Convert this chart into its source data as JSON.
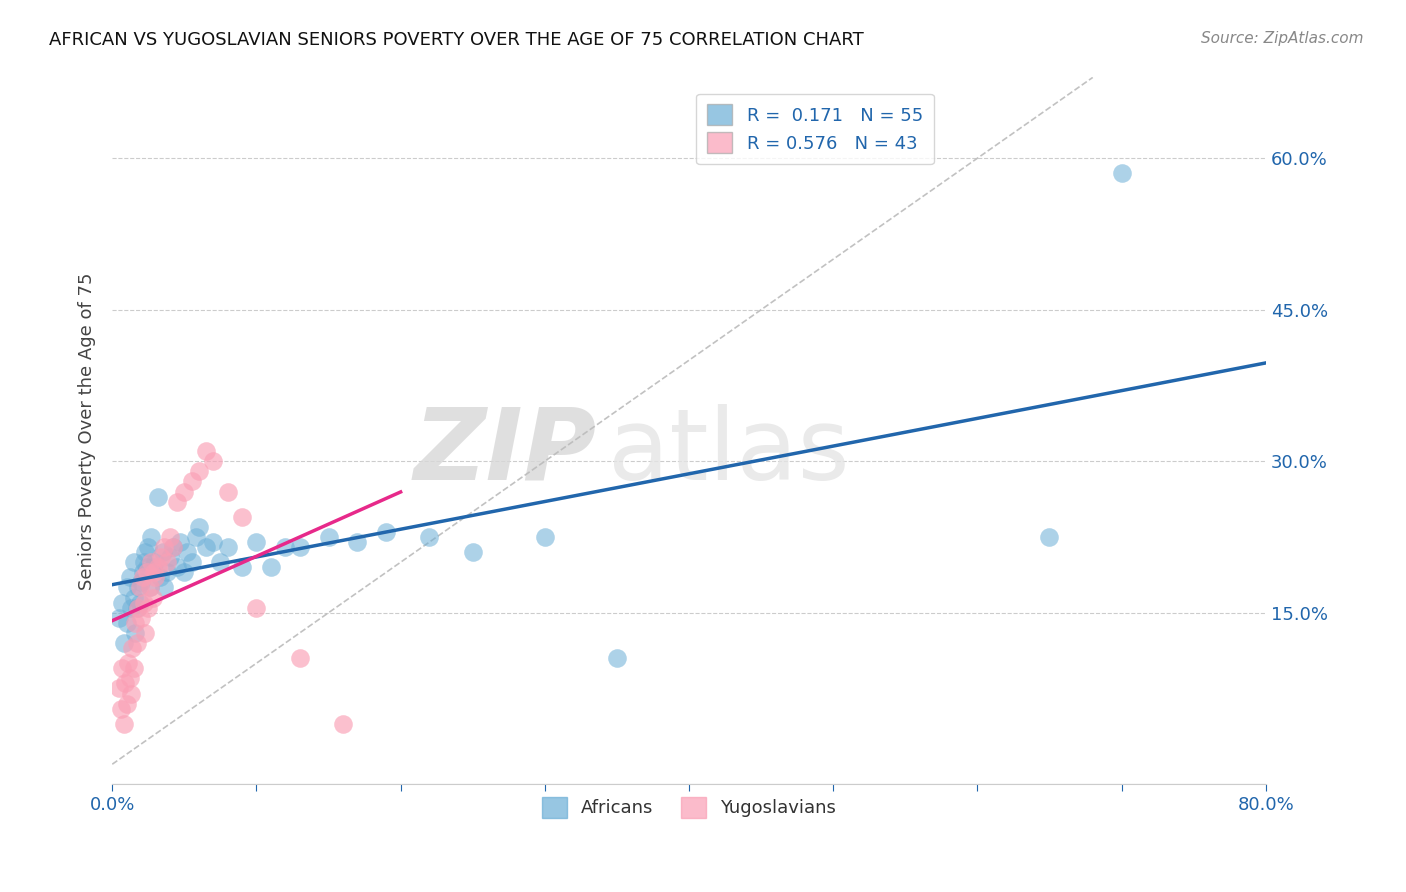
{
  "title": "AFRICAN VS YUGOSLAVIAN SENIORS POVERTY OVER THE AGE OF 75 CORRELATION CHART",
  "source": "Source: ZipAtlas.com",
  "ylabel": "Seniors Poverty Over the Age of 75",
  "xlim": [
    0.0,
    0.8
  ],
  "ylim": [
    -0.02,
    0.68
  ],
  "african_color": "#6baed6",
  "yugoslav_color": "#fa9fb5",
  "african_R": 0.171,
  "african_N": 55,
  "yugoslav_R": 0.576,
  "yugoslav_N": 43,
  "trend_color_african": "#2166ac",
  "trend_color_yugoslav": "#e7298a",
  "diagonal_color": "#bbbbbb",
  "background_color": "#ffffff",
  "watermark_zip": "ZIP",
  "watermark_atlas": "atlas",
  "africans_x": [
    0.005,
    0.007,
    0.008,
    0.01,
    0.01,
    0.012,
    0.013,
    0.015,
    0.015,
    0.016,
    0.017,
    0.018,
    0.019,
    0.02,
    0.021,
    0.022,
    0.023,
    0.024,
    0.025,
    0.026,
    0.027,
    0.028,
    0.03,
    0.032,
    0.033,
    0.035,
    0.036,
    0.038,
    0.04,
    0.042,
    0.045,
    0.047,
    0.05,
    0.052,
    0.055,
    0.058,
    0.06,
    0.065,
    0.07,
    0.075,
    0.08,
    0.09,
    0.1,
    0.11,
    0.12,
    0.13,
    0.15,
    0.17,
    0.19,
    0.22,
    0.25,
    0.3,
    0.35,
    0.65,
    0.7
  ],
  "africans_y": [
    0.145,
    0.16,
    0.12,
    0.175,
    0.14,
    0.185,
    0.155,
    0.2,
    0.165,
    0.13,
    0.155,
    0.175,
    0.16,
    0.18,
    0.19,
    0.2,
    0.21,
    0.195,
    0.215,
    0.175,
    0.225,
    0.195,
    0.2,
    0.265,
    0.185,
    0.21,
    0.175,
    0.19,
    0.205,
    0.215,
    0.195,
    0.22,
    0.19,
    0.21,
    0.2,
    0.225,
    0.235,
    0.215,
    0.22,
    0.2,
    0.215,
    0.195,
    0.22,
    0.195,
    0.215,
    0.215,
    0.225,
    0.22,
    0.23,
    0.225,
    0.21,
    0.225,
    0.105,
    0.225,
    0.585
  ],
  "yugoslavs_x": [
    0.005,
    0.006,
    0.007,
    0.008,
    0.009,
    0.01,
    0.011,
    0.012,
    0.013,
    0.014,
    0.015,
    0.016,
    0.017,
    0.018,
    0.019,
    0.02,
    0.021,
    0.022,
    0.023,
    0.024,
    0.025,
    0.026,
    0.027,
    0.028,
    0.029,
    0.03,
    0.032,
    0.034,
    0.036,
    0.038,
    0.04,
    0.042,
    0.045,
    0.05,
    0.055,
    0.06,
    0.065,
    0.07,
    0.08,
    0.09,
    0.1,
    0.13,
    0.16
  ],
  "yugoslavs_y": [
    0.075,
    0.055,
    0.095,
    0.04,
    0.08,
    0.06,
    0.1,
    0.085,
    0.07,
    0.115,
    0.095,
    0.14,
    0.12,
    0.155,
    0.175,
    0.145,
    0.185,
    0.16,
    0.13,
    0.19,
    0.155,
    0.175,
    0.2,
    0.165,
    0.19,
    0.185,
    0.195,
    0.205,
    0.215,
    0.2,
    0.225,
    0.215,
    0.26,
    0.27,
    0.28,
    0.29,
    0.31,
    0.3,
    0.27,
    0.245,
    0.155,
    0.105,
    0.04
  ]
}
